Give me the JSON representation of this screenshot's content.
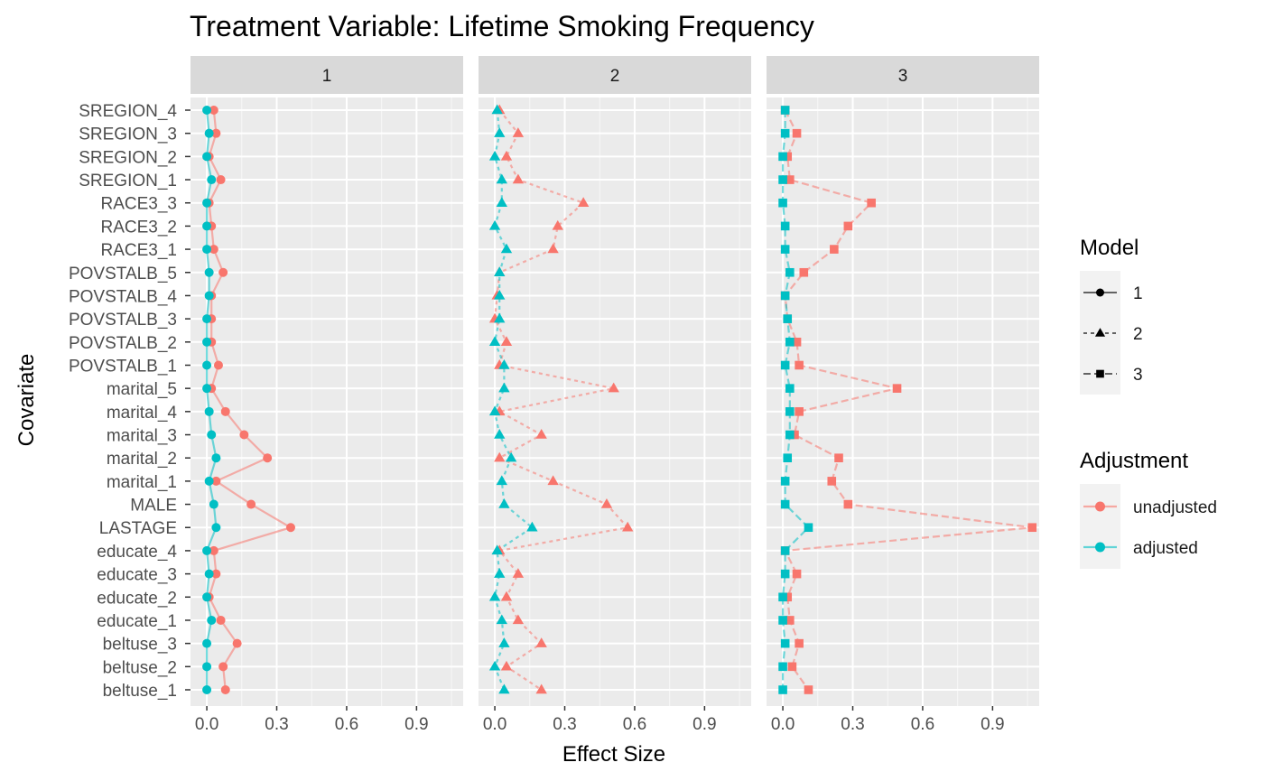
{
  "chart_data": {
    "type": "line",
    "title": "Treatment Variable: Lifetime Smoking Frequency",
    "xlabel": "Effect Size",
    "ylabel": "Covariate",
    "xlim": [
      -0.07,
      1.1
    ],
    "xticks": [
      0.0,
      0.3,
      0.6,
      0.9
    ],
    "xtick_labels": [
      "0.0",
      "0.3",
      "0.6",
      "0.9"
    ],
    "grid": true,
    "facet_labels": [
      "1",
      "2",
      "3"
    ],
    "categories": [
      "SREGION_4",
      "SREGION_3",
      "SREGION_2",
      "SREGION_1",
      "RACE3_3",
      "RACE3_2",
      "RACE3_1",
      "POVSTALB_5",
      "POVSTALB_4",
      "POVSTALB_3",
      "POVSTALB_2",
      "POVSTALB_1",
      "marital_5",
      "marital_4",
      "marital_3",
      "marital_2",
      "marital_1",
      "MALE",
      "LASTAGE",
      "educate_4",
      "educate_3",
      "educate_2",
      "educate_1",
      "beltuse_3",
      "beltuse_2",
      "beltuse_1"
    ],
    "colors": {
      "unadjusted": "#F8766D",
      "adjusted": "#00BFC4"
    },
    "legends": [
      {
        "title": "Model",
        "entries": [
          "1",
          "2",
          "3"
        ],
        "shapes": [
          "circle",
          "triangle",
          "square"
        ],
        "placement": "right"
      },
      {
        "title": "Adjustment",
        "entries": [
          "unadjusted",
          "adjusted"
        ],
        "placement": "right"
      }
    ],
    "panels": [
      {
        "facet": "1",
        "shape": "circle",
        "series": [
          {
            "name": "unadjusted",
            "values": [
              0.03,
              0.04,
              0.01,
              0.06,
              0.01,
              0.02,
              0.03,
              0.07,
              0.02,
              0.02,
              0.02,
              0.05,
              0.02,
              0.08,
              0.16,
              0.26,
              0.04,
              0.19,
              0.36,
              0.03,
              0.04,
              0.01,
              0.06,
              0.13,
              0.07,
              0.08
            ]
          },
          {
            "name": "adjusted",
            "values": [
              0.0,
              0.01,
              0.0,
              0.02,
              0.0,
              0.0,
              0.0,
              0.01,
              0.01,
              0.0,
              0.0,
              0.0,
              0.0,
              0.01,
              0.02,
              0.04,
              0.01,
              0.03,
              0.04,
              0.0,
              0.01,
              0.0,
              0.02,
              0.0,
              0.0,
              0.0
            ]
          }
        ]
      },
      {
        "facet": "2",
        "shape": "triangle",
        "series": [
          {
            "name": "unadjusted",
            "values": [
              0.02,
              0.1,
              0.05,
              0.1,
              0.38,
              0.27,
              0.25,
              0.02,
              0.01,
              0.0,
              0.05,
              0.02,
              0.51,
              0.02,
              0.2,
              0.02,
              0.25,
              0.48,
              0.57,
              0.02,
              0.1,
              0.05,
              0.1,
              0.2,
              0.05,
              0.2
            ]
          },
          {
            "name": "adjusted",
            "values": [
              0.01,
              0.02,
              0.0,
              0.03,
              0.03,
              0.0,
              0.05,
              0.02,
              0.02,
              0.02,
              0.0,
              0.04,
              0.04,
              0.0,
              0.02,
              0.07,
              0.03,
              0.04,
              0.16,
              0.01,
              0.02,
              0.0,
              0.03,
              0.04,
              0.0,
              0.04
            ]
          }
        ]
      },
      {
        "facet": "3",
        "shape": "square",
        "series": [
          {
            "name": "unadjusted",
            "values": [
              0.01,
              0.06,
              0.02,
              0.03,
              0.38,
              0.28,
              0.22,
              0.09,
              0.01,
              0.02,
              0.06,
              0.07,
              0.49,
              0.07,
              0.05,
              0.24,
              0.21,
              0.28,
              1.07,
              0.01,
              0.06,
              0.02,
              0.03,
              0.07,
              0.04,
              0.11
            ]
          },
          {
            "name": "adjusted",
            "values": [
              0.01,
              0.01,
              0.0,
              0.0,
              0.0,
              0.01,
              0.01,
              0.03,
              0.01,
              0.02,
              0.03,
              0.01,
              0.03,
              0.03,
              0.03,
              0.02,
              0.01,
              0.01,
              0.11,
              0.01,
              0.01,
              0.0,
              0.0,
              0.01,
              0.0,
              0.0
            ]
          }
        ]
      }
    ]
  }
}
